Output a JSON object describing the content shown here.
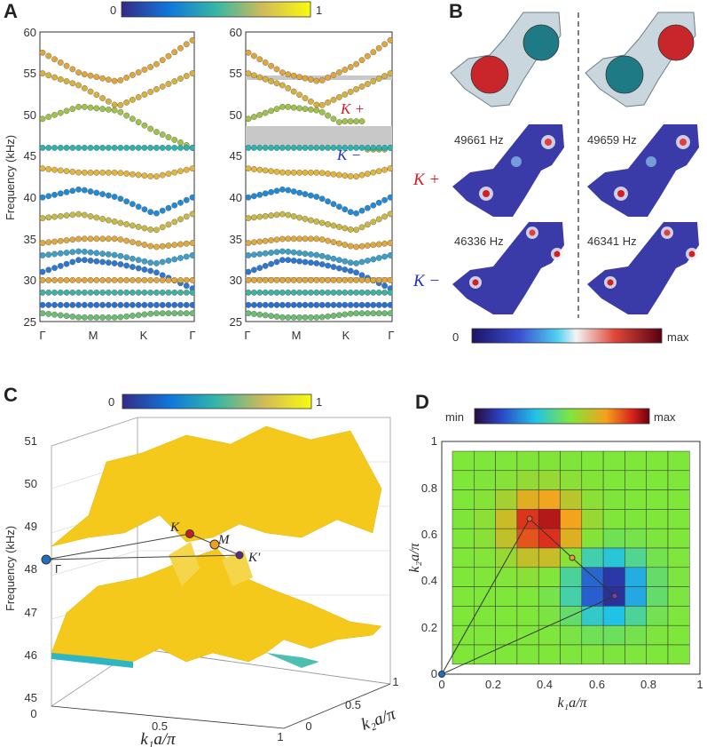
{
  "panel_labels": {
    "a": "A",
    "b": "B",
    "c": "C",
    "d": "D"
  },
  "colorbar_A": {
    "min": "0",
    "max": "1"
  },
  "colorbar_C": {
    "min": "0",
    "max": "1"
  },
  "colorbar_B": {
    "min": "0",
    "max": "max"
  },
  "colorbar_D": {
    "min": "min",
    "max": "max"
  },
  "panelA": {
    "ylabel": "Frequency (kHz)",
    "yticks": [
      "25",
      "30",
      "35",
      "40",
      "45",
      "50",
      "55",
      "60"
    ],
    "xticks": [
      "Γ",
      "M",
      "K",
      "Γ"
    ],
    "annot_kplus": "K +",
    "annot_kminus": "K −"
  },
  "panelB": {
    "freq_kplus_left": "49661 Hz",
    "freq_kplus_right": "49659 Hz",
    "freq_kminus_left": "46336 Hz",
    "freq_kminus_right": "46341 Hz",
    "row_kplus": "K +",
    "row_kminus": "K −"
  },
  "panelC": {
    "zlabel": "Frequency (kHz)",
    "zticks": [
      "45",
      "46",
      "47",
      "48",
      "49",
      "50",
      "51"
    ],
    "xlabel": "k₁a/π",
    "ylabel": "k₂a/π",
    "xticks": [
      "0",
      "0.5",
      "1"
    ],
    "yticks": [
      "0",
      "0.5",
      "1"
    ],
    "points": {
      "gamma": "Γ",
      "k": "K",
      "m": "M",
      "kprime": "K′"
    }
  },
  "panelD": {
    "xlabel": "k₁a/π",
    "ylabel": "k₂a/π",
    "ticks": [
      "0",
      "0.2",
      "0.4",
      "0.6",
      "0.8",
      "1"
    ]
  },
  "colors": {
    "teal": "#1e7a84",
    "red": "#c8262a",
    "cell": "#c9d6de",
    "surface": "#f2c81d",
    "band": "#e1a63a"
  }
}
